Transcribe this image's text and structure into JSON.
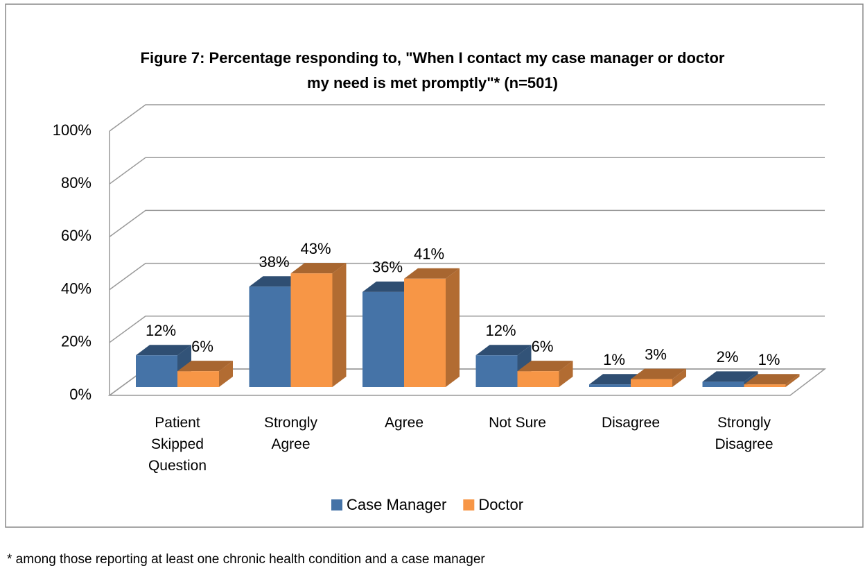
{
  "chart_data": {
    "type": "bar3d",
    "title": "Figure 7: Percentage responding to, \"When I contact my case manager or doctor my need is met promptly\"* (n=501)",
    "categories": [
      "Patient Skipped Question",
      "Strongly Agree",
      "Agree",
      "Not Sure",
      "Disagree",
      "Strongly Disagree"
    ],
    "series": [
      {
        "name": "Case Manager",
        "color": "#4573a7",
        "values": [
          12,
          38,
          36,
          12,
          1,
          2
        ],
        "value_labels": [
          "12%",
          "38%",
          "36%",
          "12%",
          "1%",
          "2%"
        ]
      },
      {
        "name": "Doctor",
        "color": "#f79646",
        "values": [
          6,
          43,
          41,
          6,
          3,
          1
        ],
        "value_labels": [
          "6%",
          "43%",
          "41%",
          "6%",
          "3%",
          "1%"
        ]
      }
    ],
    "ylim": [
      0,
      100
    ],
    "yticks": [
      {
        "value": 0,
        "label": "0%"
      },
      {
        "value": 20,
        "label": "20%"
      },
      {
        "value": 40,
        "label": "40%"
      },
      {
        "value": 60,
        "label": "60%"
      },
      {
        "value": 80,
        "label": "80%"
      },
      {
        "value": 100,
        "label": "100%"
      }
    ],
    "grid": true,
    "legend": "bottom",
    "footnote": "* among those reporting at least one chronic health condition and a case manager"
  }
}
